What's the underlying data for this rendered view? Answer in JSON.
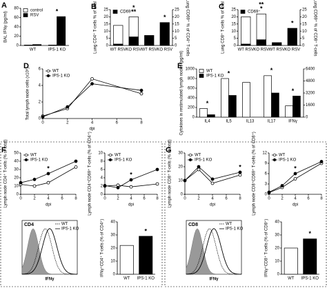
{
  "chart_data": [
    {
      "type": "bar",
      "panel": "A",
      "ylabel": "BAL IFNγ (pg/ml)",
      "categories": [
        "WT",
        "IPS-1 KO"
      ],
      "series": [
        {
          "name": "control",
          "color": "#ffffff",
          "values": [
            1,
            1
          ]
        },
        {
          "name": "RSV",
          "color": "#000000",
          "values": [
            2,
            62
          ]
        }
      ],
      "ylim": [
        0,
        80
      ],
      "yticks": [
        0,
        20,
        40,
        60,
        80
      ],
      "legend": "upper left",
      "annotations": [
        {
          "text": "*",
          "at": 1
        }
      ]
    },
    {
      "type": "bar",
      "panel": "B",
      "overlay": true,
      "ylabel": "Lung CD4⁺ T-cells % of total",
      "y2label": "Lung CD69⁺ % of CD4⁺ T-cells",
      "categories": [
        "WT RSV",
        "KO RSV",
        "WT RSV",
        "KO RSV"
      ],
      "series": [
        {
          "color": "#ffffff",
          "values": [
            14,
            20,
            null,
            null
          ]
        },
        {
          "name": "CD69⁺",
          "color": "#000000",
          "values": [
            1,
            6,
            null,
            null
          ]
        },
        {
          "color": "#000000",
          "axis": "y2",
          "values": [
            null,
            null,
            7,
            16
          ]
        }
      ],
      "ylim": [
        0,
        25
      ],
      "yticks": [
        0,
        5,
        10,
        15,
        20,
        25
      ],
      "y2lim": [
        0,
        25
      ],
      "y2ticks": [
        0,
        5,
        10,
        15,
        20,
        25
      ],
      "legend": "upper left",
      "annotations": [
        {
          "text": "**",
          "at": 1
        },
        {
          "text": "*",
          "at": 1
        },
        {
          "text": "*",
          "at": 3
        }
      ]
    },
    {
      "type": "bar",
      "panel": "C",
      "overlay": true,
      "ylabel": "Lung CD8⁺ T-cells % of total",
      "y2label": "Lung CD69⁺ % of CD8⁺ T-cells",
      "categories": [
        "WT RSV",
        "KO RSV",
        "WT RSV",
        "KO RSV"
      ],
      "series": [
        {
          "color": "#ffffff",
          "values": [
            20,
            22,
            null,
            null
          ]
        },
        {
          "name": "CD69⁺",
          "color": "#000000",
          "values": [
            1,
            4,
            null,
            null
          ]
        },
        {
          "color": "#000000",
          "axis": "y2",
          "values": [
            null,
            null,
            2,
            12
          ]
        }
      ],
      "ylim": [
        0,
        25
      ],
      "yticks": [
        0,
        5,
        10,
        15,
        20,
        25
      ],
      "y2lim": [
        0,
        25
      ],
      "y2ticks": [
        0,
        5,
        10,
        15,
        20,
        25
      ],
      "legend": "upper left",
      "annotations": [
        {
          "text": "*",
          "at": 1
        },
        {
          "text": "**",
          "at": 1
        },
        {
          "text": "*",
          "at": 3
        }
      ]
    },
    {
      "type": "line",
      "panel": "D",
      "xlabel": "dpi",
      "ylabel": "Total lymph node cells (x10⁶)",
      "x": [
        0,
        2,
        4,
        8
      ],
      "series": [
        {
          "name": "WT",
          "color": "#ffffff",
          "values": [
            0.3,
            1.2,
            4.8,
            3.0
          ]
        },
        {
          "name": "IPS-1 KO",
          "color": "#000000",
          "values": [
            0.2,
            1.4,
            4.2,
            3.4
          ]
        }
      ],
      "xlim": [
        0,
        8
      ],
      "xticks": [
        0,
        2,
        4,
        6,
        8
      ],
      "ylim": [
        0,
        6
      ],
      "yticks": [
        0,
        2,
        4,
        6
      ],
      "legend": "upper left"
    },
    {
      "type": "bar",
      "panel": "E",
      "ylabel": "Cytokines in restimulated lymph nodes (pg/ml)",
      "categories": [
        "IL4",
        "IL5",
        "IL13",
        "IL17",
        "IFNγ"
      ],
      "series": [
        {
          "name": "WT",
          "color": "#ffffff",
          "values": [
            180,
            800,
            720,
            null,
            null
          ]
        },
        {
          "name": "IPS-1 KO",
          "color": "#000000",
          "values": [
            50,
            450,
            0,
            null,
            null
          ]
        },
        {
          "name": "WT",
          "color": "#ffffff",
          "axis": "y2",
          "values": [
            null,
            null,
            null,
            5500,
            1500
          ]
        },
        {
          "name": "IPS-1 KO",
          "color": "#000000",
          "axis": "y2",
          "values": [
            null,
            null,
            null,
            3200,
            2800
          ]
        }
      ],
      "ylim": [
        0,
        1000
      ],
      "yticks": [
        0,
        200,
        400,
        600,
        800,
        1000
      ],
      "y2lim": [
        0,
        6400
      ],
      "y2ticks": [
        0,
        1600,
        3200,
        4800,
        6400
      ],
      "legend": "upper left",
      "annotations": [
        {
          "text": "*",
          "at": 0
        },
        {
          "text": "*",
          "at": 1
        },
        {
          "text": "*",
          "at": 3
        },
        {
          "text": "*",
          "at": 4
        }
      ]
    },
    {
      "type": "line",
      "panel": "F",
      "xlabel": "dpi",
      "ylabel": "Lymph node CD4⁺ T-cells (% of total)",
      "x": [
        0,
        2,
        4,
        8
      ],
      "series": [
        {
          "name": "WT",
          "color": "#ffffff",
          "values": [
            12,
            10,
            14,
            33
          ]
        },
        {
          "name": "IPS-1 KO",
          "color": "#000000",
          "values": [
            14,
            18,
            25,
            40
          ]
        }
      ],
      "xlim": [
        0,
        8
      ],
      "xticks": [
        0,
        2,
        4,
        6,
        8
      ],
      "ylim": [
        0,
        50
      ],
      "yticks": [
        0,
        10,
        20,
        30,
        40,
        50
      ],
      "legend": "upper left",
      "annotations": [
        {
          "text": "*",
          "at": 4
        }
      ]
    },
    {
      "type": "line",
      "xlabel": "dpi",
      "ylabel": "Lymph node CD4⁺CD69⁺ T-cells (% of CD4⁺)",
      "x": [
        0,
        2,
        4,
        8
      ],
      "series": [
        {
          "name": "WT",
          "color": "#ffffff",
          "values": [
            2,
            2.2,
            1.8,
            2.5
          ]
        },
        {
          "name": "IPS-1 KO",
          "color": "#000000",
          "values": [
            2.1,
            1.6,
            3.5,
            6
          ]
        }
      ],
      "xlim": [
        0,
        8
      ],
      "xticks": [
        0,
        2,
        4,
        6,
        8
      ],
      "ylim": [
        0,
        10
      ],
      "yticks": [
        0,
        2,
        4,
        6,
        8,
        10
      ],
      "legend": "upper left",
      "annotations": [
        {
          "text": "*",
          "at": 4
        }
      ]
    },
    {
      "type": "flow",
      "ylabel": "CD4",
      "xlabel": "IFNγ",
      "series": [
        {
          "name": "WT"
        },
        {
          "name": "IPS-1 KO"
        }
      ]
    },
    {
      "type": "bar",
      "ylabel": "IFNγ⁺CD4⁺ T-cells (% of CD4⁺)",
      "categories": [
        "WT",
        "IPS-1 KO"
      ],
      "series": [
        {
          "color": "#ffffff",
          "values": [
            22,
            null
          ]
        },
        {
          "color": "#000000",
          "values": [
            null,
            29
          ]
        }
      ],
      "ylim": [
        0,
        40
      ],
      "yticks": [
        0,
        10,
        20,
        30,
        40
      ],
      "annotations": [
        {
          "text": "*",
          "at": 1
        }
      ]
    },
    {
      "type": "line",
      "panel": "G",
      "xlabel": "dpi",
      "ylabel": "Lymph node CD8⁺ T-cells (% of total)",
      "x": [
        0,
        2,
        4,
        8
      ],
      "series": [
        {
          "name": "WT",
          "color": "#ffffff",
          "values": [
            10,
            18,
            8,
            14
          ]
        },
        {
          "name": "IPS-1 KO",
          "color": "#000000",
          "values": [
            10,
            20,
            11,
            16
          ]
        }
      ],
      "xlim": [
        0,
        8
      ],
      "xticks": [
        0,
        2,
        4,
        6,
        8
      ],
      "ylim": [
        0,
        30
      ],
      "yticks": [
        0,
        10,
        20,
        30
      ],
      "legend": "upper left",
      "annotations": [
        {
          "text": "*",
          "at": 8
        }
      ]
    },
    {
      "type": "line",
      "xlabel": "dpi",
      "ylabel": "Lymph node CD8⁺CD69⁺ T-cells (% of CD8⁺)",
      "x": [
        0,
        2,
        4,
        8
      ],
      "series": [
        {
          "name": "WT",
          "color": "#ffffff",
          "values": [
            0.5,
            2,
            4.5,
            9
          ]
        },
        {
          "name": "IPS-1 KO",
          "color": "#000000",
          "values": [
            0.6,
            2.5,
            6,
            9.5
          ]
        }
      ],
      "xlim": [
        0,
        8
      ],
      "xticks": [
        0,
        2,
        4,
        6,
        8
      ],
      "ylim": [
        0,
        12
      ],
      "yticks": [
        0,
        3,
        6,
        9,
        12
      ],
      "legend": "upper left",
      "annotations": [
        {
          "text": "*",
          "at": 4
        }
      ]
    },
    {
      "type": "flow",
      "ylabel": "CD8",
      "xlabel": "IFNγ",
      "series": [
        {
          "name": "WT"
        },
        {
          "name": "IPS-1 KO"
        }
      ]
    },
    {
      "type": "bar",
      "ylabel": "IFNγ⁺CD8⁺ T-cells (% of CD8⁺)",
      "categories": [
        "WT",
        "IPS-1 KO"
      ],
      "series": [
        {
          "color": "#ffffff",
          "values": [
            20,
            null
          ]
        },
        {
          "color": "#000000",
          "values": [
            null,
            27
          ]
        }
      ],
      "ylim": [
        0,
        40
      ],
      "yticks": [
        0,
        10,
        20,
        30,
        40
      ],
      "annotations": [
        {
          "text": "*",
          "at": 1
        }
      ]
    }
  ]
}
